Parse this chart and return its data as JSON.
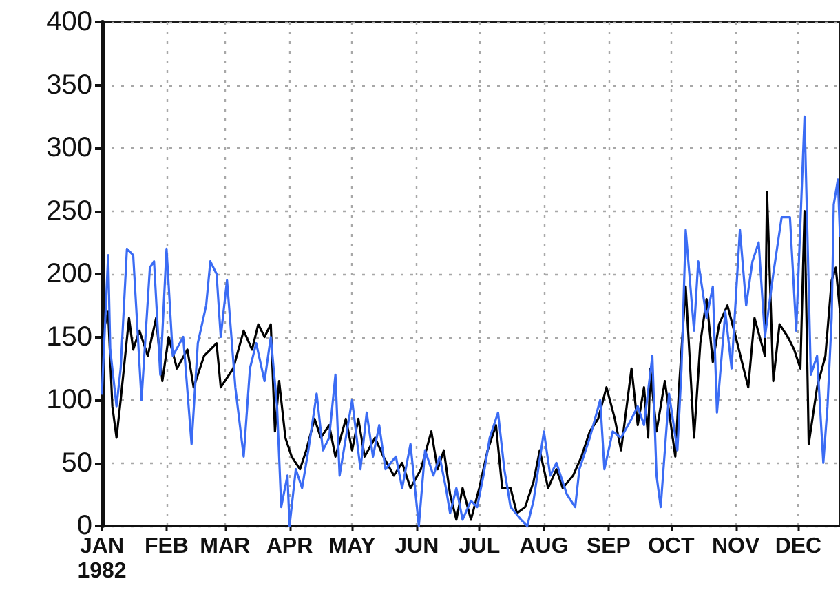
{
  "chart_data": {
    "type": "line",
    "xlim": [
      "1982-01-01",
      "1982-12-21"
    ],
    "xticks": [
      {
        "value": "1982-01-01",
        "label": "JAN\n1982"
      },
      {
        "value": "1982-02-01",
        "label": "FEB"
      },
      {
        "value": "1982-03-01",
        "label": "MAR"
      },
      {
        "value": "1982-04-01",
        "label": "APR"
      },
      {
        "value": "1982-05-01",
        "label": "MAY"
      },
      {
        "value": "1982-06-01",
        "label": "JUN"
      },
      {
        "value": "1982-07-01",
        "label": "JUL"
      },
      {
        "value": "1982-08-01",
        "label": "AUG"
      },
      {
        "value": "1982-09-01",
        "label": "SEP"
      },
      {
        "value": "1982-10-01",
        "label": "OCT"
      },
      {
        "value": "1982-11-01",
        "label": "NOV"
      },
      {
        "value": "1982-12-01",
        "label": "DEC"
      }
    ],
    "ylim": [
      0,
      400
    ],
    "yticks": [
      0,
      50,
      100,
      150,
      200,
      250,
      300,
      350,
      400
    ],
    "grid": true,
    "series": [
      {
        "color": "#000000",
        "x": [
          "1982-01-01",
          "1982-01-04",
          "1982-01-06",
          "1982-01-08",
          "1982-01-10",
          "1982-01-14",
          "1982-01-16",
          "1982-01-19",
          "1982-01-23",
          "1982-01-27",
          "1982-01-30",
          "1982-02-02",
          "1982-02-06",
          "1982-02-11",
          "1982-02-14",
          "1982-02-19",
          "1982-02-25",
          "1982-02-27",
          "1982-03-05",
          "1982-03-10",
          "1982-03-14",
          "1982-03-17",
          "1982-03-20",
          "1982-03-23",
          "1982-03-25",
          "1982-03-27",
          "1982-03-30",
          "1982-04-02",
          "1982-04-06",
          "1982-04-09",
          "1982-04-13",
          "1982-04-16",
          "1982-04-20",
          "1982-04-23",
          "1982-04-28",
          "1982-05-01",
          "1982-05-04",
          "1982-05-07",
          "1982-05-12",
          "1982-05-16",
          "1982-05-21",
          "1982-05-25",
          "1982-05-29",
          "1982-06-03",
          "1982-06-08",
          "1982-06-11",
          "1982-06-14",
          "1982-06-17",
          "1982-06-20",
          "1982-06-23",
          "1982-06-27",
          "1982-07-01",
          "1982-07-05",
          "1982-07-09",
          "1982-07-12",
          "1982-07-16",
          "1982-07-19",
          "1982-07-23",
          "1982-07-27",
          "1982-07-30",
          "1982-08-03",
          "1982-08-07",
          "1982-08-10",
          "1982-08-15",
          "1982-08-19",
          "1982-08-23",
          "1982-08-27",
          "1982-08-31",
          "1982-09-04",
          "1982-09-07",
          "1982-09-12",
          "1982-09-15",
          "1982-09-18",
          "1982-09-20",
          "1982-09-21",
          "1982-09-24",
          "1982-09-28",
          "1982-10-03",
          "1982-10-05",
          "1982-10-08",
          "1982-10-12",
          "1982-10-15",
          "1982-10-18",
          "1982-10-21",
          "1982-10-24",
          "1982-10-28",
          "1982-11-01",
          "1982-11-07",
          "1982-11-10",
          "1982-11-15",
          "1982-11-16",
          "1982-11-19",
          "1982-11-22",
          "1982-11-26",
          "1982-11-29",
          "1982-12-02",
          "1982-12-04",
          "1982-12-06",
          "1982-12-10",
          "1982-12-14",
          "1982-12-17",
          "1982-12-19",
          "1982-12-21"
        ],
        "values": [
          150,
          170,
          95,
          70,
          100,
          165,
          140,
          155,
          135,
          165,
          115,
          150,
          125,
          140,
          110,
          135,
          145,
          110,
          125,
          155,
          140,
          160,
          150,
          160,
          75,
          115,
          70,
          55,
          45,
          60,
          85,
          70,
          80,
          55,
          85,
          60,
          85,
          55,
          70,
          55,
          40,
          50,
          30,
          45,
          75,
          45,
          60,
          25,
          5,
          30,
          5,
          30,
          60,
          80,
          30,
          30,
          10,
          15,
          35,
          60,
          30,
          45,
          30,
          40,
          55,
          75,
          85,
          110,
          85,
          60,
          125,
          80,
          110,
          70,
          125,
          75,
          115,
          55,
          115,
          190,
          70,
          145,
          180,
          130,
          160,
          175,
          150,
          110,
          165,
          135,
          265,
          115,
          160,
          150,
          140,
          125,
          250,
          65,
          110,
          135,
          195,
          205,
          170
        ]
      },
      {
        "color": "#3b6cf4",
        "x": [
          "1982-01-01",
          "1982-01-04",
          "1982-01-05",
          "1982-01-08",
          "1982-01-10",
          "1982-01-13",
          "1982-01-16",
          "1982-01-20",
          "1982-01-24",
          "1982-01-26",
          "1982-01-29",
          "1982-02-01",
          "1982-02-04",
          "1982-02-09",
          "1982-02-13",
          "1982-02-16",
          "1982-02-20",
          "1982-02-22",
          "1982-02-25",
          "1982-02-27",
          "1982-03-02",
          "1982-03-06",
          "1982-03-10",
          "1982-03-13",
          "1982-03-16",
          "1982-03-20",
          "1982-03-23",
          "1982-03-26",
          "1982-03-28",
          "1982-03-31",
          "1982-04-01",
          "1982-04-04",
          "1982-04-07",
          "1982-04-10",
          "1982-04-14",
          "1982-04-17",
          "1982-04-20",
          "1982-04-23",
          "1982-04-25",
          "1982-04-29",
          "1982-05-01",
          "1982-05-05",
          "1982-05-08",
          "1982-05-11",
          "1982-05-14",
          "1982-05-17",
          "1982-05-22",
          "1982-05-25",
          "1982-05-29",
          "1982-06-02",
          "1982-06-05",
          "1982-06-09",
          "1982-06-12",
          "1982-06-15",
          "1982-06-17",
          "1982-06-20",
          "1982-06-23",
          "1982-06-27",
          "1982-06-30",
          "1982-07-03",
          "1982-07-06",
          "1982-07-10",
          "1982-07-13",
          "1982-07-16",
          "1982-07-21",
          "1982-07-24",
          "1982-07-27",
          "1982-08-01",
          "1982-08-04",
          "1982-08-07",
          "1982-08-12",
          "1982-08-16",
          "1982-08-18",
          "1982-08-23",
          "1982-08-28",
          "1982-08-30",
          "1982-09-03",
          "1982-09-07",
          "1982-09-12",
          "1982-09-15",
          "1982-09-18",
          "1982-09-22",
          "1982-09-24",
          "1982-09-26",
          "1982-09-28",
          "1982-09-30",
          "1982-10-04",
          "1982-10-06",
          "1982-10-08",
          "1982-10-12",
          "1982-10-14",
          "1982-10-18",
          "1982-10-21",
          "1982-10-23",
          "1982-10-27",
          "1982-10-30",
          "1982-11-03",
          "1982-11-06",
          "1982-11-09",
          "1982-11-12",
          "1982-11-15",
          "1982-11-19",
          "1982-11-23",
          "1982-11-27",
          "1982-11-30",
          "1982-12-04",
          "1982-12-07",
          "1982-12-10",
          "1982-12-13",
          "1982-12-15",
          "1982-12-17",
          "1982-12-18",
          "1982-12-20",
          "1982-12-21"
        ],
        "values": [
          105,
          215,
          140,
          95,
          125,
          220,
          215,
          100,
          205,
          210,
          120,
          220,
          135,
          150,
          65,
          145,
          175,
          210,
          200,
          150,
          195,
          110,
          55,
          125,
          145,
          115,
          150,
          95,
          15,
          40,
          0,
          45,
          30,
          60,
          105,
          60,
          70,
          120,
          40,
          80,
          100,
          45,
          90,
          55,
          80,
          45,
          55,
          30,
          65,
          0,
          60,
          40,
          55,
          30,
          10,
          30,
          5,
          20,
          15,
          40,
          70,
          90,
          45,
          15,
          5,
          0,
          20,
          75,
          40,
          50,
          25,
          15,
          45,
          70,
          100,
          45,
          75,
          70,
          85,
          95,
          80,
          135,
          40,
          15,
          60,
          105,
          60,
          125,
          235,
          155,
          210,
          165,
          190,
          90,
          170,
          125,
          235,
          175,
          210,
          225,
          150,
          200,
          245,
          245,
          155,
          325,
          120,
          135,
          50,
          95,
          165,
          255,
          275,
          230
        ]
      }
    ]
  }
}
